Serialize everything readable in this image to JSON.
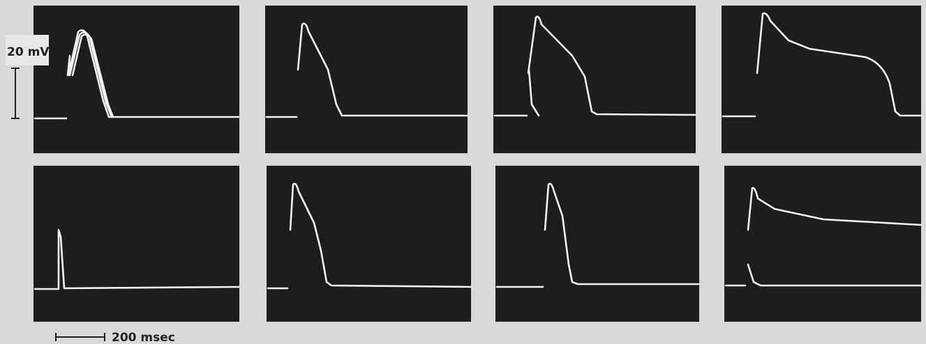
{
  "voltage_scale": "20 mV",
  "time_scale": "200 msec"
}
